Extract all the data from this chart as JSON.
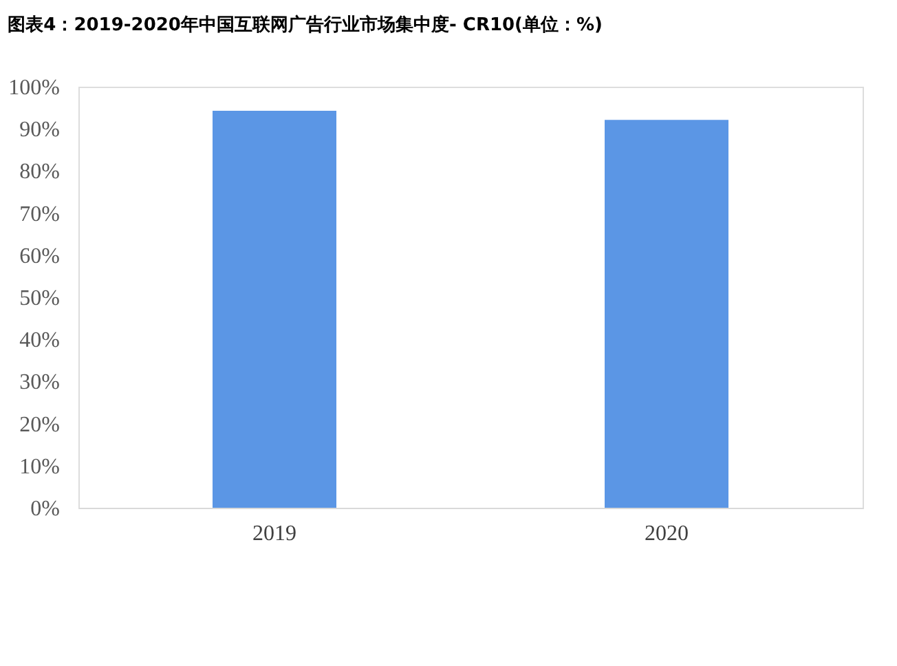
{
  "chart_data": {
    "type": "bar",
    "title": "图表4：2019-2020年中国互联网广告行业市场集中度- CR10(单位：%)",
    "categories": [
      "2019",
      "2020"
    ],
    "values": [
      94.3,
      92.1
    ],
    "color": "#5b96e5",
    "ylim": [
      0,
      100
    ],
    "yticks": [
      {
        "value": 0,
        "label": "0%"
      },
      {
        "value": 10,
        "label": "10%"
      },
      {
        "value": 20,
        "label": "20%"
      },
      {
        "value": 30,
        "label": "30%"
      },
      {
        "value": 40,
        "label": "40%"
      },
      {
        "value": 50,
        "label": "50%"
      },
      {
        "value": 60,
        "label": "60%"
      },
      {
        "value": 70,
        "label": "70%"
      },
      {
        "value": 80,
        "label": "80%"
      },
      {
        "value": 90,
        "label": "90%"
      },
      {
        "value": 100,
        "label": "100%"
      }
    ],
    "grid": false
  }
}
